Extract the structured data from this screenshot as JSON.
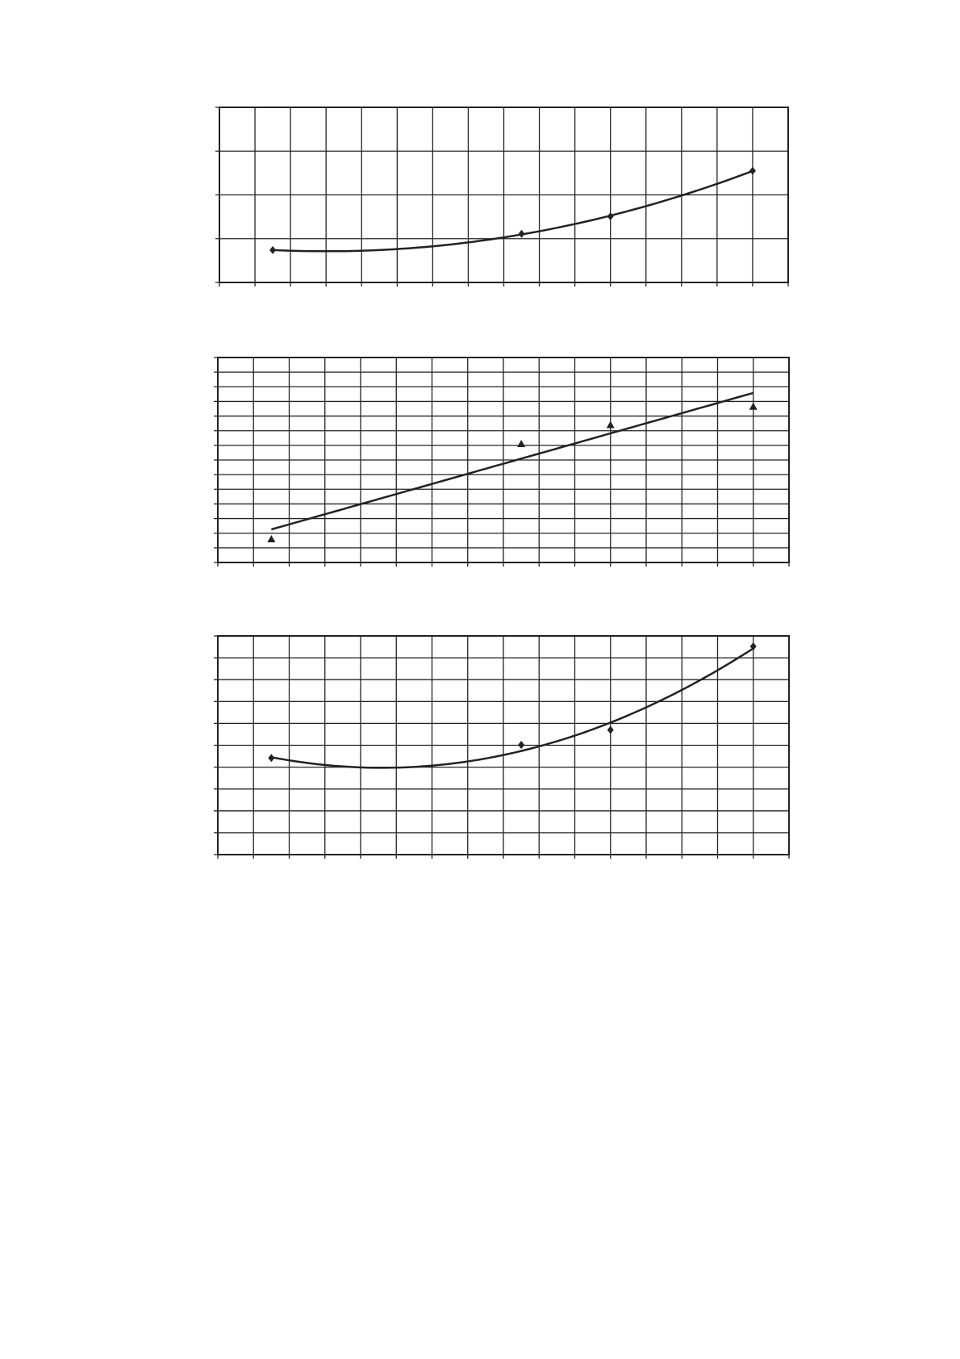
{
  "chart_data": [
    {
      "type": "scatter",
      "trendline": 2,
      "marker": "diamond",
      "color": "#222222",
      "grid": true,
      "x": [
        1.5,
        8.5,
        11,
        15
      ],
      "values": [
        0.74,
        1.11,
        1.51,
        2.55
      ],
      "xlim": [
        0,
        16
      ],
      "ylim": [
        0,
        4
      ],
      "xticks": [
        0,
        1,
        2,
        3,
        4,
        5,
        6,
        7,
        8,
        9,
        10,
        11,
        12,
        13,
        14,
        15,
        16
      ],
      "yticks": [
        0,
        1,
        2,
        3,
        4
      ]
    },
    {
      "type": "scatter",
      "trendline": 1,
      "marker": "triangle",
      "color": "#222222",
      "grid": true,
      "x": [
        1.5,
        8.5,
        11,
        15
      ],
      "values": [
        1.6,
        8.1,
        9.4,
        10.65
      ],
      "xlim": [
        0,
        16
      ],
      "ylim": [
        0,
        14
      ],
      "xticks": [
        0,
        1,
        2,
        3,
        4,
        5,
        6,
        7,
        8,
        9,
        10,
        11,
        12,
        13,
        14,
        15,
        16
      ],
      "yticks": [
        0,
        1,
        2,
        3,
        4,
        5,
        6,
        7,
        8,
        9,
        10,
        11,
        12,
        13,
        14
      ]
    },
    {
      "type": "scatter",
      "trendline": 2,
      "marker": "diamond",
      "color": "#222222",
      "grid": true,
      "x": [
        1.5,
        8.5,
        11,
        15
      ],
      "values": [
        4.42,
        5.02,
        5.7,
        9.52
      ],
      "xlim": [
        0,
        16
      ],
      "ylim": [
        0,
        10
      ],
      "xticks": [
        0,
        1,
        2,
        3,
        4,
        5,
        6,
        7,
        8,
        9,
        10,
        11,
        12,
        13,
        14,
        15,
        16
      ],
      "yticks": [
        0,
        1,
        2,
        3,
        4,
        5,
        6,
        7,
        8,
        9,
        10
      ]
    }
  ]
}
